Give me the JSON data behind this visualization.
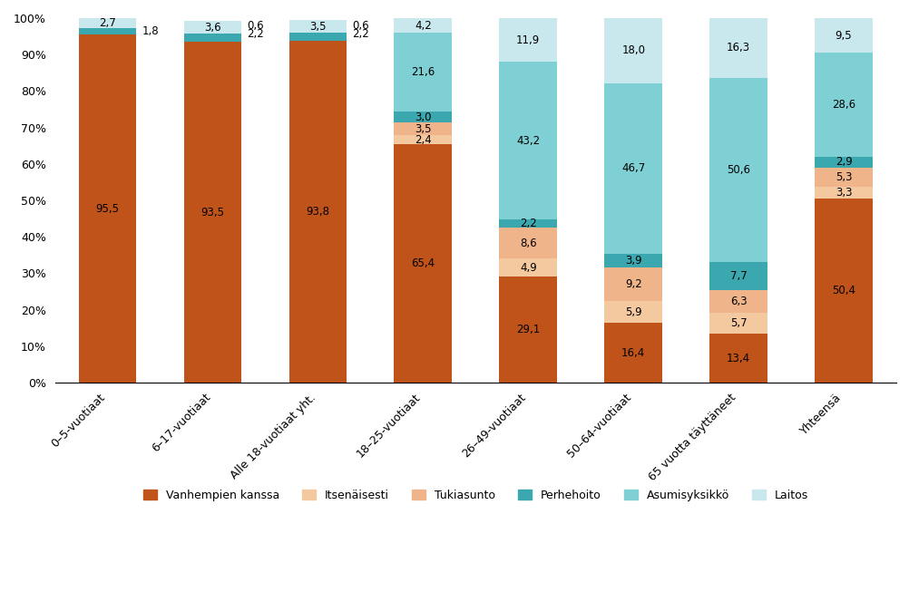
{
  "categories": [
    "0–5-vuotiaat",
    "6–17-vuotiaat",
    "Alle 18-vuotiaat yht.",
    "18–25-vuotiaat",
    "26–49-vuotiaat",
    "50–64-vuotiaat",
    "65 vuotta täyttäneet",
    "Yhteensä"
  ],
  "series": {
    "Vanhempien kanssa": [
      95.5,
      93.5,
      93.8,
      65.4,
      29.1,
      16.4,
      13.4,
      50.4
    ],
    "Itsenäisesti": [
      0.0,
      0.0,
      0.0,
      2.4,
      4.9,
      5.9,
      5.7,
      3.3
    ],
    "Tukiasunto": [
      0.0,
      0.0,
      0.0,
      3.5,
      8.6,
      9.2,
      6.3,
      5.3
    ],
    "Perhehoito": [
      1.8,
      2.2,
      2.2,
      3.0,
      2.2,
      3.9,
      7.7,
      2.9
    ],
    "Asumisyksikkö": [
      0.0,
      0.0,
      0.0,
      21.6,
      43.2,
      46.7,
      50.6,
      28.6
    ],
    "Laitos": [
      2.7,
      3.6,
      3.5,
      4.2,
      11.9,
      18.0,
      16.3,
      9.5
    ]
  },
  "right_labels": [
    [
      0,
      "1,8",
      96.4
    ],
    [
      1,
      "0,6",
      97.8
    ],
    [
      1,
      "2,2",
      95.6
    ],
    [
      2,
      "0,6",
      97.8
    ],
    [
      2,
      "2,2",
      95.6
    ]
  ],
  "colors": {
    "Vanhempien kanssa": "#C0531A",
    "Itsenäisesti": "#F5C9A0",
    "Tukiasunto": "#F0B48A",
    "Perhehoito": "#3BA8B0",
    "Asumisyksikkö": "#7ED0D5",
    "Laitos": "#C8E8EE"
  },
  "ylim": [
    0,
    100
  ],
  "yticks": [
    0,
    10,
    20,
    30,
    40,
    50,
    60,
    70,
    80,
    90,
    100
  ],
  "ytick_labels": [
    "0%",
    "10%",
    "20%",
    "30%",
    "40%",
    "50%",
    "60%",
    "70%",
    "80%",
    "90%",
    "100%"
  ],
  "figsize": [
    10.03,
    6.53
  ],
  "dpi": 100,
  "background_color": "#FFFFFF",
  "label_fontsize": 8.5,
  "tick_fontsize": 9,
  "legend_fontsize": 9,
  "bar_width": 0.55
}
